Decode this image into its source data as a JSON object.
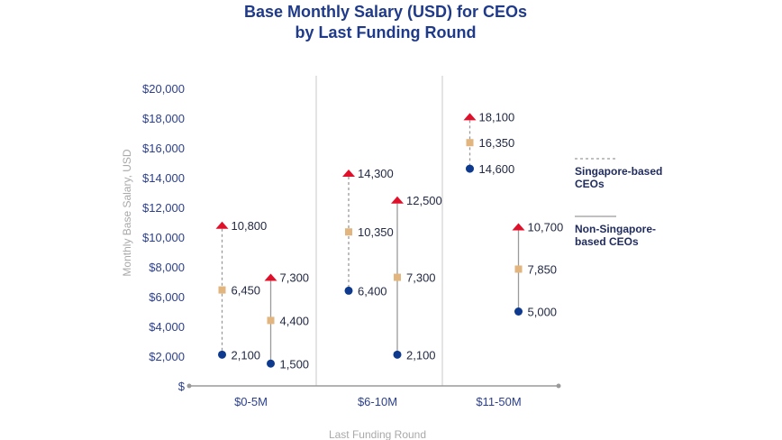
{
  "chart_data": {
    "type": "range-dot",
    "title_lines": [
      "Base Monthly Salary (USD) for CEOs",
      "by Last Funding Round"
    ],
    "xlabel": "Last Funding Round",
    "ylabel": "Monthly Base Salary, USD",
    "ylim": [
      0,
      20000
    ],
    "yticks": [
      0,
      2000,
      4000,
      6000,
      8000,
      10000,
      12000,
      14000,
      16000,
      18000,
      20000
    ],
    "ytick_labels": [
      "$",
      "$2,000",
      "$4,000",
      "$6,000",
      "$8,000",
      "$10,000",
      "$12,000",
      "$14,000",
      "$16,000",
      "$18,000",
      "$20,000"
    ],
    "categories": [
      "$0-5M",
      "$6-10M",
      "$11-50M"
    ],
    "series": [
      {
        "name": "Singapore-based CEOs",
        "line_style": "dashed",
        "values": [
          {
            "low": 2100,
            "mid": 6450,
            "high": 10800,
            "low_label": "2,100",
            "mid_label": "6,450",
            "high_label": "10,800"
          },
          {
            "low": 6400,
            "mid": 10350,
            "high": 14300,
            "low_label": "6,400",
            "mid_label": "10,350",
            "high_label": "14,300"
          },
          {
            "low": 14600,
            "mid": 16350,
            "high": 18100,
            "low_label": "14,600",
            "mid_label": "16,350",
            "high_label": "18,100"
          }
        ]
      },
      {
        "name": "Non-Singapore-based CEOs",
        "line_style": "solid",
        "values": [
          {
            "low": 1500,
            "mid": 4400,
            "high": 7300,
            "low_label": "1,500",
            "mid_label": "4,400",
            "high_label": "7,300"
          },
          {
            "low": 2100,
            "mid": 7300,
            "high": 12500,
            "low_label": "2,100",
            "mid_label": "7,300",
            "high_label": "12,500"
          },
          {
            "low": 5000,
            "mid": 7850,
            "high": 10700,
            "low_label": "5,000",
            "mid_label": "7,850",
            "high_label": "10,700"
          }
        ]
      }
    ],
    "legend": {
      "placement": "right",
      "items": [
        {
          "lines": [
            "Singapore-based",
            "CEOs"
          ],
          "style": "dashed"
        },
        {
          "lines": [
            "Non-Singapore-",
            "based CEOs"
          ],
          "style": "solid"
        }
      ]
    },
    "colors": {
      "high_marker": "#e0102a",
      "mid_marker": "#e2b57f",
      "low_marker": "#0d3a8e",
      "range_line": "#9a9a9a",
      "axis": "#9a9a9a",
      "separator": "#c8c8c8",
      "title": "#1f3a8a"
    }
  }
}
